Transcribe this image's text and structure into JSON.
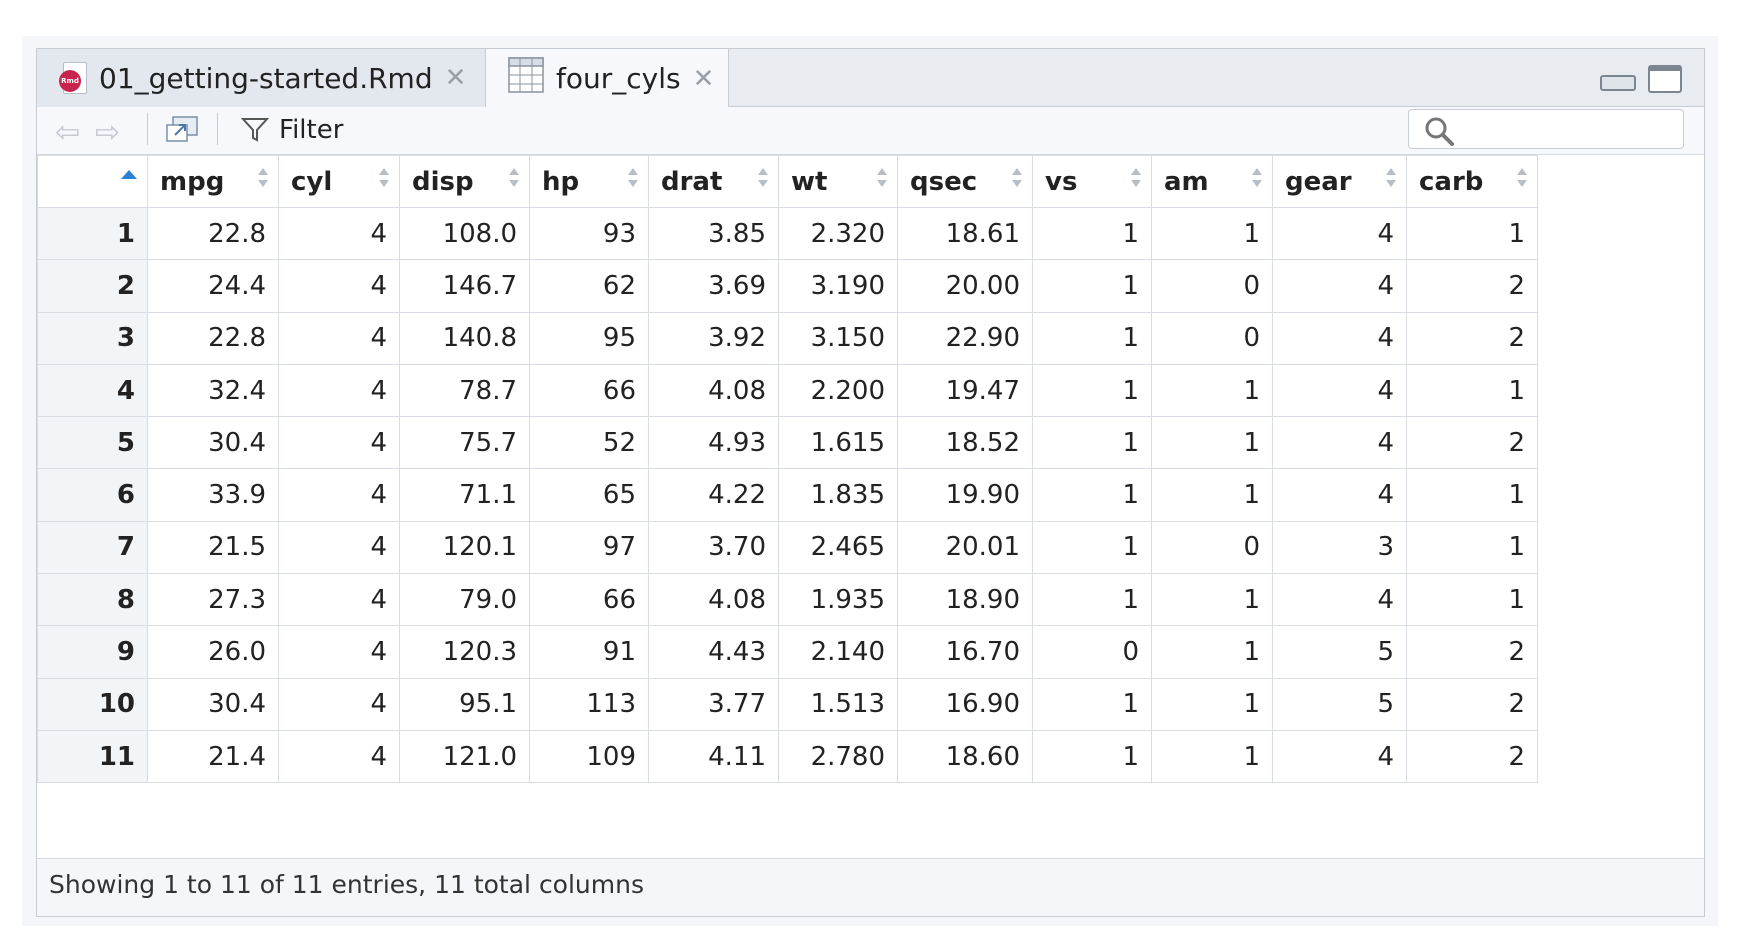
{
  "tabs": [
    {
      "label": "01_getting-started.Rmd",
      "icon": "rmd-file-icon",
      "active": false
    },
    {
      "label": "four_cyls",
      "icon": "data-grid-icon",
      "active": true
    }
  ],
  "toolbar": {
    "filter_label": "Filter",
    "search_placeholder": ""
  },
  "table": {
    "columns": [
      "mpg",
      "cyl",
      "disp",
      "hp",
      "drat",
      "wt",
      "qsec",
      "vs",
      "am",
      "gear",
      "carb"
    ],
    "rows": [
      {
        "n": "1",
        "cells": [
          "22.8",
          "4",
          "108.0",
          "93",
          "3.85",
          "2.320",
          "18.61",
          "1",
          "1",
          "4",
          "1"
        ]
      },
      {
        "n": "2",
        "cells": [
          "24.4",
          "4",
          "146.7",
          "62",
          "3.69",
          "3.190",
          "20.00",
          "1",
          "0",
          "4",
          "2"
        ]
      },
      {
        "n": "3",
        "cells": [
          "22.8",
          "4",
          "140.8",
          "95",
          "3.92",
          "3.150",
          "22.90",
          "1",
          "0",
          "4",
          "2"
        ]
      },
      {
        "n": "4",
        "cells": [
          "32.4",
          "4",
          "78.7",
          "66",
          "4.08",
          "2.200",
          "19.47",
          "1",
          "1",
          "4",
          "1"
        ]
      },
      {
        "n": "5",
        "cells": [
          "30.4",
          "4",
          "75.7",
          "52",
          "4.93",
          "1.615",
          "18.52",
          "1",
          "1",
          "4",
          "2"
        ]
      },
      {
        "n": "6",
        "cells": [
          "33.9",
          "4",
          "71.1",
          "65",
          "4.22",
          "1.835",
          "19.90",
          "1",
          "1",
          "4",
          "1"
        ]
      },
      {
        "n": "7",
        "cells": [
          "21.5",
          "4",
          "120.1",
          "97",
          "3.70",
          "2.465",
          "20.01",
          "1",
          "0",
          "3",
          "1"
        ]
      },
      {
        "n": "8",
        "cells": [
          "27.3",
          "4",
          "79.0",
          "66",
          "4.08",
          "1.935",
          "18.90",
          "1",
          "1",
          "4",
          "1"
        ]
      },
      {
        "n": "9",
        "cells": [
          "26.0",
          "4",
          "120.3",
          "91",
          "4.43",
          "2.140",
          "16.70",
          "0",
          "1",
          "5",
          "2"
        ]
      },
      {
        "n": "10",
        "cells": [
          "30.4",
          "4",
          "95.1",
          "113",
          "3.77",
          "1.513",
          "16.90",
          "1",
          "1",
          "5",
          "2"
        ]
      },
      {
        "n": "11",
        "cells": [
          "21.4",
          "4",
          "121.0",
          "109",
          "4.11",
          "2.780",
          "18.60",
          "1",
          "1",
          "4",
          "2"
        ]
      }
    ]
  },
  "footer": {
    "status": "Showing 1 to 11 of 11 entries, 11 total columns"
  },
  "colors": {
    "sort_active": "#2c7fd1",
    "rmd_badge": "#c7254e"
  }
}
